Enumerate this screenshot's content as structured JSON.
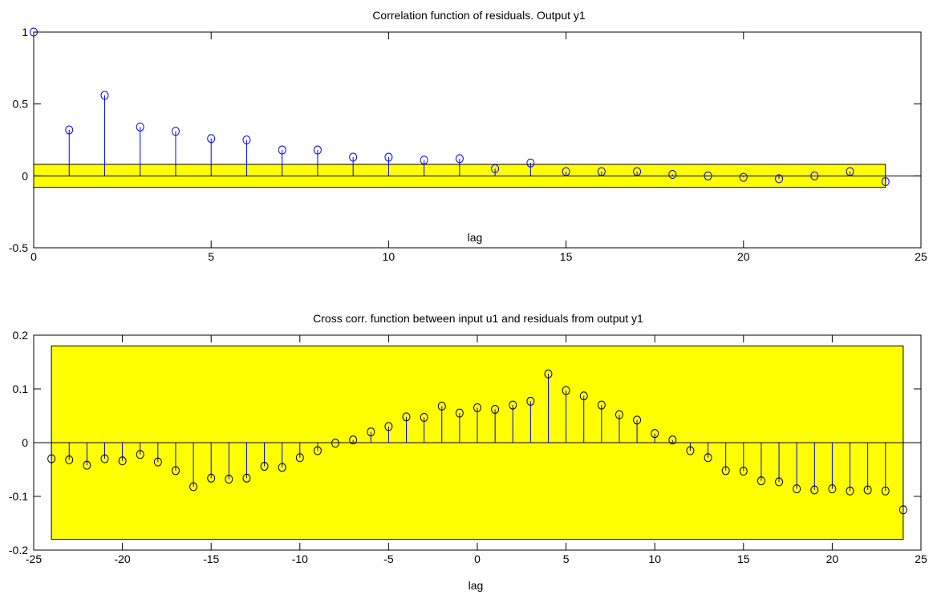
{
  "chart_data": [
    {
      "type": "stem",
      "title": "Correlation function of residuals. Output y1",
      "xlabel": "lag",
      "ylabel": "",
      "xlim": [
        0,
        25
      ],
      "ylim": [
        -0.5,
        1
      ],
      "xticks": [
        0,
        5,
        10,
        15,
        20,
        25
      ],
      "yticks": [
        -0.5,
        0,
        0.5,
        1
      ],
      "xtick_labels": [
        "0",
        "5",
        "10",
        "15",
        "20",
        "25"
      ],
      "ytick_labels": [
        "-0.5",
        "0",
        "0.5",
        "1"
      ],
      "confidence_band": {
        "x": [
          0,
          24
        ],
        "y": [
          -0.08,
          0.08
        ],
        "color": "#ffff00"
      },
      "marker_color": "#0000ff",
      "stem_color": "#0000ff",
      "grid": false,
      "x": [
        0,
        1,
        2,
        3,
        4,
        5,
        6,
        7,
        8,
        9,
        10,
        11,
        12,
        13,
        14,
        15,
        16,
        17,
        18,
        19,
        20,
        21,
        22,
        23,
        24
      ],
      "y": [
        1.0,
        0.32,
        0.56,
        0.34,
        0.31,
        0.26,
        0.25,
        0.18,
        0.18,
        0.13,
        0.13,
        0.11,
        0.12,
        0.05,
        0.09,
        0.03,
        0.03,
        0.03,
        0.01,
        0.0,
        -0.01,
        -0.02,
        0.0,
        0.03,
        -0.04
      ]
    },
    {
      "type": "stem",
      "title": "Cross corr. function between input u1 and residuals from output y1",
      "xlabel": "lag",
      "ylabel": "",
      "xlim": [
        -25,
        25
      ],
      "ylim": [
        -0.2,
        0.2
      ],
      "xticks": [
        -25,
        -20,
        -15,
        -10,
        -5,
        0,
        5,
        10,
        15,
        20,
        25
      ],
      "yticks": [
        -0.2,
        -0.1,
        0,
        0.1,
        0.2
      ],
      "xtick_labels": [
        "-25",
        "-20",
        "-15",
        "-10",
        "-5",
        "0",
        "5",
        "10",
        "15",
        "20",
        "25"
      ],
      "ytick_labels": [
        "-0.2",
        "-0.1",
        "0",
        "0.1",
        "0.2"
      ],
      "confidence_band": {
        "x": [
          -24,
          24
        ],
        "y": [
          -0.18,
          0.18
        ],
        "color": "#ffff00"
      },
      "marker_color": "#000000",
      "stem_color": "#0000ff",
      "grid": false,
      "x": [
        -24,
        -23,
        -22,
        -21,
        -20,
        -19,
        -18,
        -17,
        -16,
        -15,
        -14,
        -13,
        -12,
        -11,
        -10,
        -9,
        -8,
        -7,
        -6,
        -5,
        -4,
        -3,
        -2,
        -1,
        0,
        1,
        2,
        3,
        4,
        5,
        6,
        7,
        8,
        9,
        10,
        11,
        12,
        13,
        14,
        15,
        16,
        17,
        18,
        19,
        20,
        21,
        22,
        23,
        24
      ],
      "y": [
        -0.03,
        -0.032,
        -0.042,
        -0.03,
        -0.034,
        -0.022,
        -0.036,
        -0.052,
        -0.082,
        -0.066,
        -0.068,
        -0.066,
        -0.044,
        -0.046,
        -0.028,
        -0.015,
        -0.001,
        0.005,
        0.02,
        0.03,
        0.048,
        0.047,
        0.068,
        0.055,
        0.065,
        0.062,
        0.07,
        0.077,
        0.128,
        0.097,
        0.087,
        0.07,
        0.052,
        0.042,
        0.017,
        0.005,
        -0.015,
        -0.028,
        -0.052,
        -0.053,
        -0.071,
        -0.073,
        -0.086,
        -0.088,
        -0.086,
        -0.09,
        -0.088,
        -0.09,
        -0.125
      ]
    }
  ]
}
